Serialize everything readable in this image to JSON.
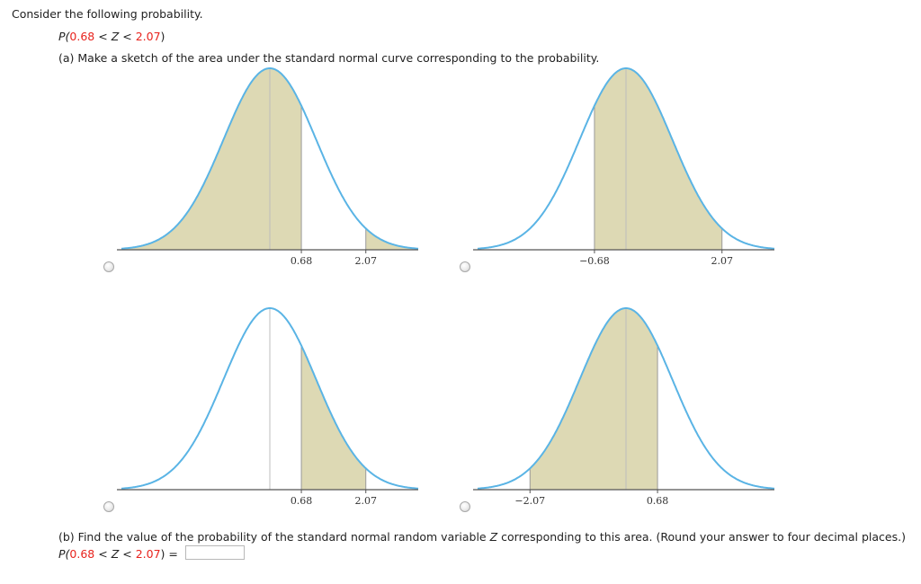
{
  "question": {
    "intro": "Consider the following probability.",
    "prob": {
      "prefix": "P(",
      "lower": "0.68",
      "mid1": " < ",
      "var": "Z",
      "mid2": " < ",
      "upper": "2.07",
      "suffix": ")"
    },
    "part_a": "(a) Make a sketch of the area under the standard normal curve corresponding to the probability.",
    "part_b": {
      "prefix": "(b) Find the value of the probability of the standard normal random variable ",
      "var": "Z",
      "suffix": " corresponding to this area. (Round your answer to four decimal places.)"
    },
    "answer_prefix": "P(",
    "answer_lower": "0.68",
    "answer_upper": "2.07",
    "answer_suffix": ") =",
    "answer_value": ""
  },
  "options": [
    {
      "labels": [
        "0.68",
        "2.07"
      ],
      "shading": "left of 0.68 and right of 2.07"
    },
    {
      "labels": [
        "−0.68",
        "2.07"
      ],
      "shading": "between −0.68 and 2.07"
    },
    {
      "labels": [
        "0.68",
        "2.07"
      ],
      "shading": "between 0.68 and 2.07"
    },
    {
      "labels": [
        "−2.07",
        "0.68"
      ],
      "shading": "between −2.07 and 0.68"
    }
  ],
  "colors": {
    "curve": "#5ab4e5",
    "fill": "#ddd9b4",
    "axis": "#555555",
    "highlight": "#e8231d"
  }
}
